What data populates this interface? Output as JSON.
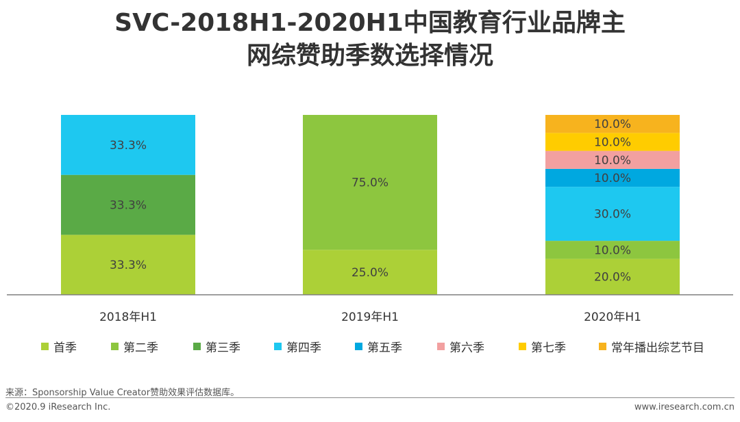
{
  "title": {
    "line1": "SVC-2018H1-2020H1中国教育行业品牌主",
    "line2": "网综赞助季数选择情况"
  },
  "chart_data": {
    "type": "bar",
    "stacked": true,
    "normalized": true,
    "categories": [
      "2018年H1",
      "2019年H1",
      "2020年H1"
    ],
    "series": [
      {
        "name": "首季",
        "color": "#acd037",
        "values": [
          33.3,
          25.0,
          20.0
        ]
      },
      {
        "name": "第二季",
        "color": "#8dc63f",
        "values": [
          0,
          75.0,
          10.0
        ]
      },
      {
        "name": "第三季",
        "color": "#5aaa46",
        "values": [
          33.3,
          0,
          0
        ]
      },
      {
        "name": "第四季",
        "color": "#1ec8f0",
        "values": [
          33.3,
          0,
          30.0
        ]
      },
      {
        "name": "第五季",
        "color": "#00a8e0",
        "values": [
          0,
          0,
          10.0
        ]
      },
      {
        "name": "第六季",
        "color": "#f2a0a0",
        "values": [
          0,
          0,
          10.0
        ]
      },
      {
        "name": "第七季",
        "color": "#ffcc00",
        "values": [
          0,
          0,
          10.0
        ]
      },
      {
        "name": "常年播出综艺节目",
        "color": "#f7b31e",
        "values": [
          0,
          0,
          10.0
        ]
      }
    ],
    "data_labels": [
      [
        "33.3%",
        "",
        "33.3%",
        "33.3%",
        "",
        "",
        "",
        ""
      ],
      [
        "25.0%",
        "75.0%",
        "",
        "",
        "",
        "",
        "",
        ""
      ],
      [
        "20.0%",
        "10.0%",
        "",
        "30.0%",
        "10.0%",
        "10.0%",
        "10.0%",
        "10.0%"
      ]
    ],
    "ylim": [
      0,
      100
    ],
    "grid": false,
    "legend_position": "bottom"
  },
  "footer": {
    "source": "来源：Sponsorship Value Creator赞助效果评估数据库。",
    "copyright": "©2020.9 iResearch Inc.",
    "website": "www.iresearch.com.cn"
  }
}
